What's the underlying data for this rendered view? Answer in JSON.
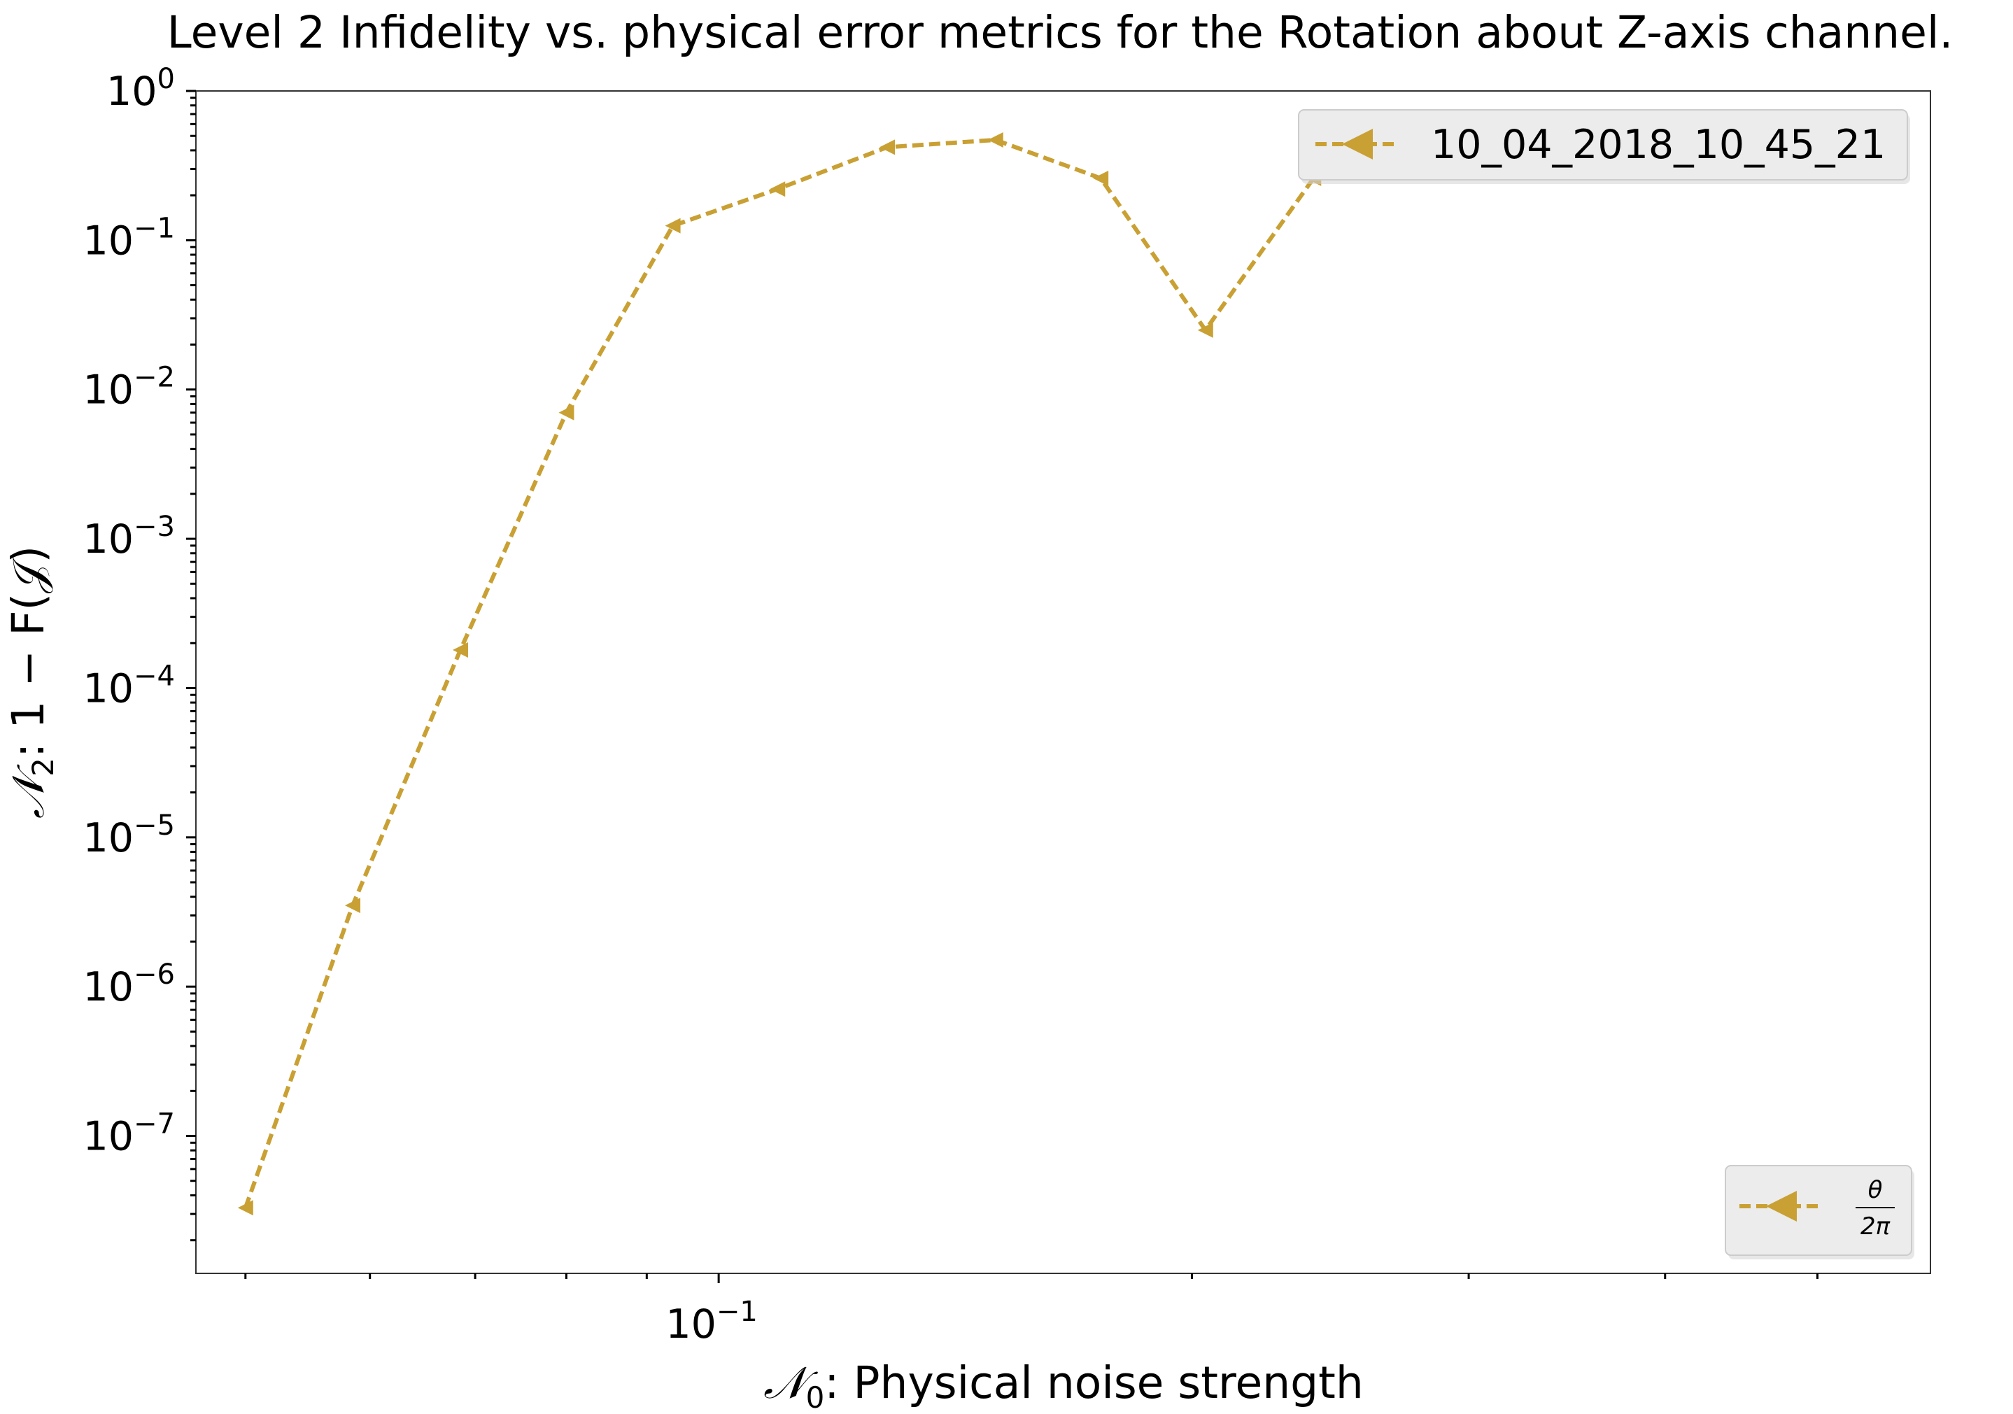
{
  "chart_data": {
    "type": "line",
    "title": "Level 2 Infidelity vs. physical error metrics for the Rotation about Z-axis channel.",
    "xlabel_prefix": "𝒩",
    "xlabel_sub": "0",
    "xlabel_rest": ": Physical noise strength",
    "ylabel_prefix": "𝒩",
    "ylabel_sub": "2",
    "ylabel_rest": ": 1 − F(𝒥)",
    "xscale": "log",
    "yscale": "log",
    "xlim": [
      0.0465,
      0.59
    ],
    "ylim": [
      1.2e-08,
      1.0
    ],
    "x_tick_labels": [
      {
        "value": 0.1,
        "base": "10",
        "exp": "−1"
      }
    ],
    "y_tick_labels": [
      {
        "value": 1,
        "base": "10",
        "exp": "0"
      },
      {
        "value": 0.1,
        "base": "10",
        "exp": "−1"
      },
      {
        "value": 0.01,
        "base": "10",
        "exp": "−2"
      },
      {
        "value": 0.001,
        "base": "10",
        "exp": "−3"
      },
      {
        "value": 0.0001,
        "base": "10",
        "exp": "−4"
      },
      {
        "value": 1e-05,
        "base": "10",
        "exp": "−5"
      },
      {
        "value": 1e-06,
        "base": "10",
        "exp": "−6"
      },
      {
        "value": 1e-07,
        "base": "10",
        "exp": "−7"
      }
    ],
    "grid": false,
    "series": [
      {
        "name": "10_04_2018_10_45_21",
        "color": "#c9a033",
        "line_style": "dashed",
        "marker": "left-triangle",
        "x": [
          0.05,
          0.0585,
          0.0685,
          0.08,
          0.0935,
          0.109,
          0.128,
          0.15,
          0.175,
          0.204,
          0.239,
          0.279,
          0.326,
          0.38,
          0.444,
          0.519
        ],
        "y": [
          3.3e-08,
          3.5e-06,
          0.00018,
          0.007,
          0.125,
          0.22,
          0.42,
          0.47,
          0.26,
          0.025,
          0.26,
          0.5,
          0.5,
          0.5,
          0.5,
          0.5
        ]
      }
    ],
    "legends": [
      {
        "location": "upper right",
        "entries": [
          "10_04_2018_10_45_21"
        ]
      },
      {
        "location": "lower right",
        "entries": [
          {
            "numerator": "θ",
            "denominator": "2π"
          }
        ]
      }
    ]
  }
}
